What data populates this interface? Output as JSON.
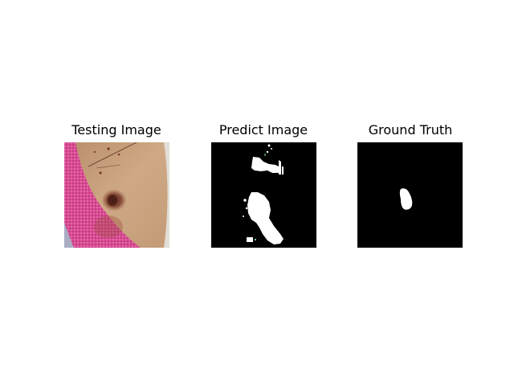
{
  "panels": [
    {
      "title": "Testing Image",
      "content": "dermoscopy photo of skin with a dark lesion and pink fabric at left"
    },
    {
      "title": "Predict Image",
      "content": "predicted segmentation mask: white regions on black background"
    },
    {
      "title": "Ground Truth",
      "content": "ground truth mask: small white blob on black background"
    }
  ],
  "colors": {
    "mask_background": "#000000",
    "mask_foreground": "#ffffff",
    "skin": "#c8a07a",
    "fabric": "#d94a92",
    "lesion": "#6b2e22"
  }
}
